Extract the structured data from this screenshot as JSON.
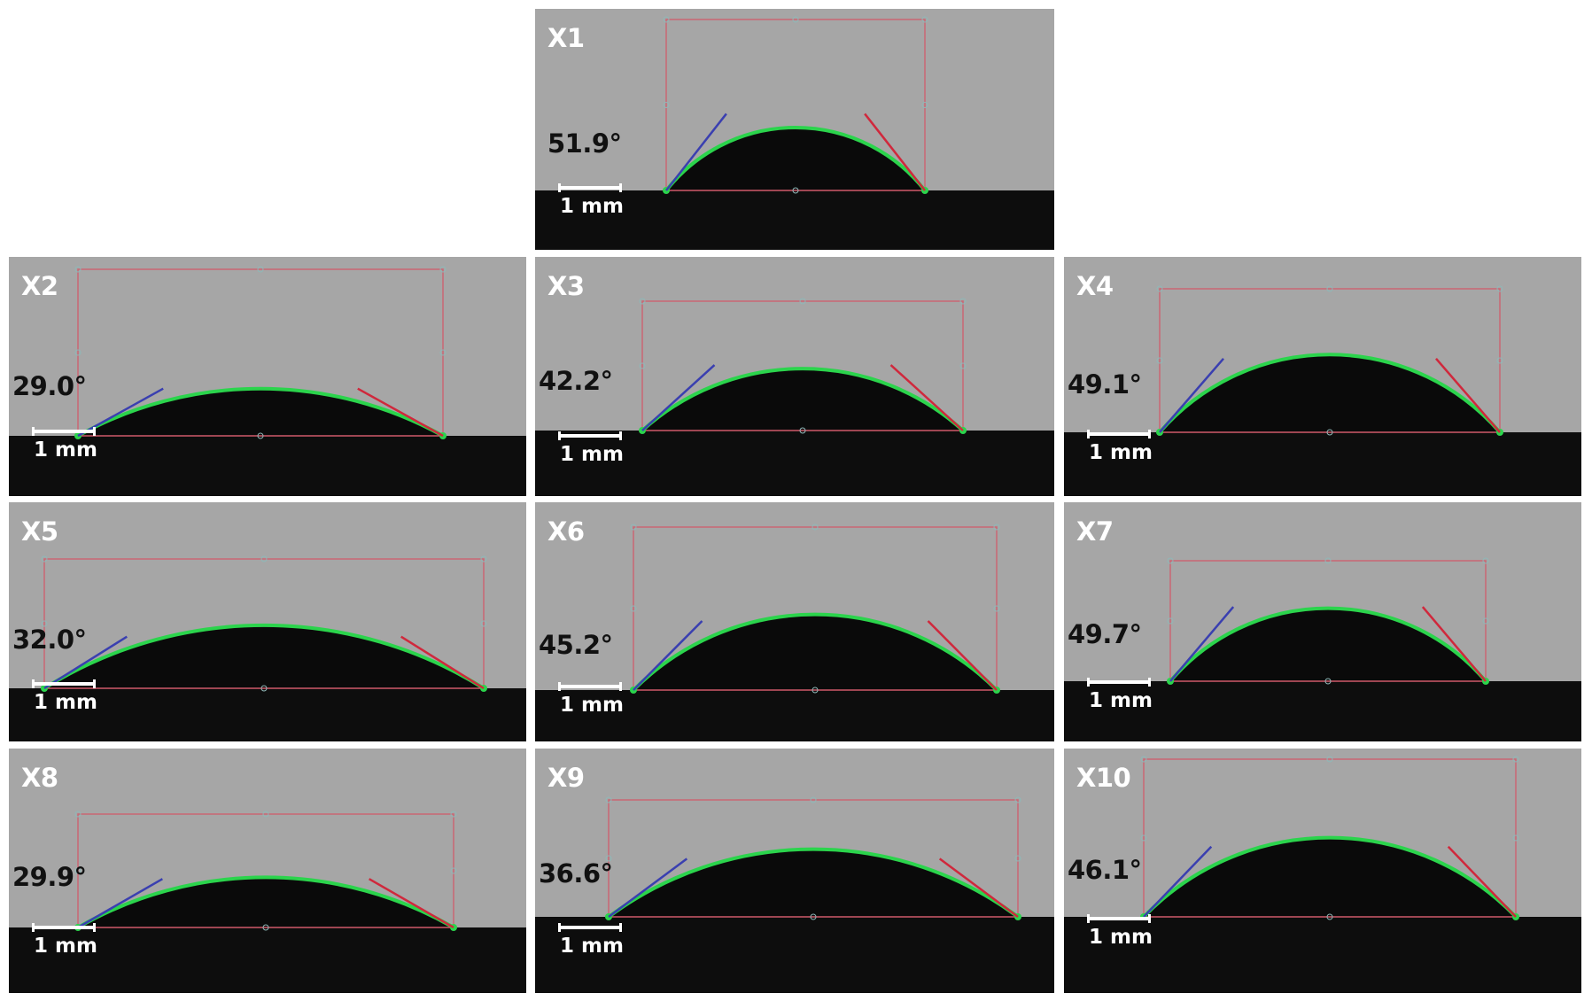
{
  "figure": {
    "scale_label": "1 mm",
    "colors": {
      "background": "#a6a6a6",
      "substrate": "#0d0d0d",
      "droplet": "#0a0a0a",
      "fit_curve": "#2bd44c",
      "bounding_box": "#d05a6a",
      "left_tangent": "#3a3fb0",
      "right_tangent": "#d0283c",
      "label_text": "#ffffff",
      "angle_text": "#111111"
    },
    "panels": [
      {
        "id": "X1",
        "angle": "51.9°",
        "contact_angle_deg": 51.9
      },
      {
        "id": "X2",
        "angle": "29.0°",
        "contact_angle_deg": 29.0
      },
      {
        "id": "X3",
        "angle": "42.2°",
        "contact_angle_deg": 42.2
      },
      {
        "id": "X4",
        "angle": "49.1°",
        "contact_angle_deg": 49.1
      },
      {
        "id": "X5",
        "angle": "32.0°",
        "contact_angle_deg": 32.0
      },
      {
        "id": "X6",
        "angle": "45.2°",
        "contact_angle_deg": 45.2
      },
      {
        "id": "X7",
        "angle": "49.7°",
        "contact_angle_deg": 49.7
      },
      {
        "id": "X8",
        "angle": "29.9°",
        "contact_angle_deg": 29.9
      },
      {
        "id": "X9",
        "angle": "36.6°",
        "contact_angle_deg": 36.6
      },
      {
        "id": "X10",
        "angle": "46.1°",
        "contact_angle_deg": 46.1
      }
    ]
  }
}
